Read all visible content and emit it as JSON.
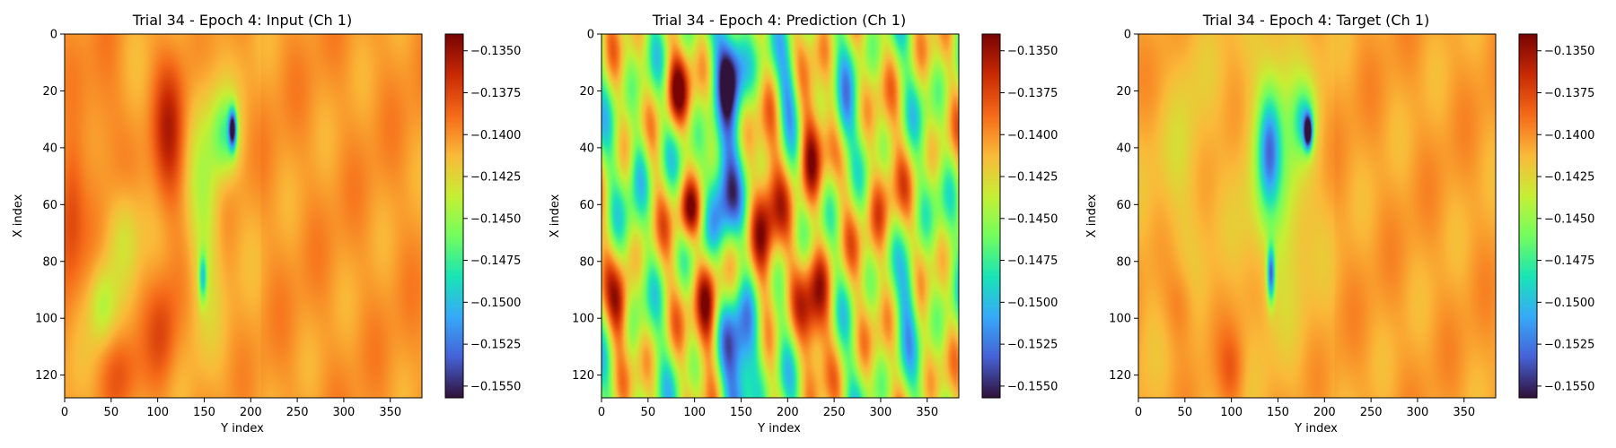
{
  "colors": {
    "cmap_stops": [
      "#30123b",
      "#4662d7",
      "#36aaf9",
      "#1ae4b6",
      "#72fe5e",
      "#c7ef34",
      "#faba39",
      "#f66b19",
      "#ca2a04",
      "#7a0403"
    ],
    "background": "#f4b43c",
    "axis": "#000000"
  },
  "chart_data": [
    {
      "type": "heatmap",
      "panel": "input",
      "title": "Trial 34 - Epoch 4: Input (Ch 1)",
      "xlabel": "Y index",
      "ylabel": "X index",
      "xlim": [
        0,
        384
      ],
      "ylim": [
        128,
        0
      ],
      "xticks": [
        0,
        50,
        100,
        150,
        200,
        250,
        300,
        350
      ],
      "yticks": [
        0,
        20,
        40,
        60,
        80,
        100,
        120
      ],
      "colorbar": {
        "range": [
          -0.1557,
          -0.134
        ],
        "ticks": [
          "−0.1350",
          "−0.1375",
          "−0.1400",
          "−0.1425",
          "−0.1450",
          "−0.1475",
          "−0.1500",
          "−0.1525",
          "−0.1550"
        ]
      },
      "background_value": -0.1405,
      "blobs": [
        {
          "x": 112,
          "y": 35,
          "sx": 12,
          "sy": 18,
          "v": -0.1362
        },
        {
          "x": 5,
          "y": 62,
          "sx": 10,
          "sy": 18,
          "v": -0.1372
        },
        {
          "x": 105,
          "y": 105,
          "sx": 12,
          "sy": 14,
          "v": -0.1378
        },
        {
          "x": 60,
          "y": 118,
          "sx": 14,
          "sy": 10,
          "v": -0.1385
        },
        {
          "x": 40,
          "y": 25,
          "sx": 15,
          "sy": 20,
          "v": -0.1392
        },
        {
          "x": 150,
          "y": 60,
          "sx": 12,
          "sy": 28,
          "v": -0.1442
        },
        {
          "x": 40,
          "y": 95,
          "sx": 10,
          "sy": 10,
          "v": -0.144
        },
        {
          "x": 180,
          "y": 33,
          "sx": 3,
          "sy": 5,
          "v": -0.1535
        },
        {
          "x": 172,
          "y": 35,
          "sx": 10,
          "sy": 10,
          "v": -0.1462
        },
        {
          "x": 148,
          "y": 85,
          "sx": 3,
          "sy": 6,
          "v": -0.1475
        },
        {
          "x": 65,
          "y": 70,
          "sx": 12,
          "sy": 12,
          "v": -0.143
        }
      ]
    },
    {
      "type": "heatmap",
      "panel": "prediction",
      "title": "Trial 34 - Epoch 4: Prediction (Ch 1)",
      "xlabel": "Y index",
      "ylabel": "X index",
      "xlim": [
        0,
        384
      ],
      "ylim": [
        128,
        0
      ],
      "xticks": [
        0,
        50,
        100,
        150,
        200,
        250,
        300,
        350
      ],
      "yticks": [
        0,
        20,
        40,
        60,
        80,
        100,
        120
      ],
      "colorbar": {
        "range": [
          -0.1557,
          -0.134
        ],
        "ticks": [
          "−0.1350",
          "−0.1375",
          "−0.1400",
          "−0.1425",
          "−0.1450",
          "−0.1475",
          "−0.1500",
          "−0.1525",
          "−0.1550"
        ]
      },
      "background_value": -0.144,
      "blobs": [
        {
          "x": 140,
          "y": 10,
          "sx": 12,
          "sy": 12,
          "v": -0.1557
        },
        {
          "x": 130,
          "y": 55,
          "sx": 12,
          "sy": 16,
          "v": -0.1557
        },
        {
          "x": 150,
          "y": 110,
          "sx": 14,
          "sy": 16,
          "v": -0.1557
        },
        {
          "x": 95,
          "y": 62,
          "sx": 10,
          "sy": 8,
          "v": -0.135
        },
        {
          "x": 115,
          "y": 95,
          "sx": 10,
          "sy": 14,
          "v": -0.1345
        },
        {
          "x": 175,
          "y": 70,
          "sx": 12,
          "sy": 20,
          "v": -0.1348
        },
        {
          "x": 225,
          "y": 40,
          "sx": 10,
          "sy": 14,
          "v": -0.1355
        },
        {
          "x": 80,
          "y": 20,
          "sx": 10,
          "sy": 10,
          "v": -0.1365
        },
        {
          "x": 230,
          "y": 95,
          "sx": 12,
          "sy": 16,
          "v": -0.136
        },
        {
          "x": 20,
          "y": 95,
          "sx": 8,
          "sy": 10,
          "v": -0.1375
        },
        {
          "x": 300,
          "y": 60,
          "sx": 12,
          "sy": 18,
          "v": -0.139
        },
        {
          "x": 260,
          "y": 30,
          "sx": 8,
          "sy": 10,
          "v": -0.1495
        },
        {
          "x": 330,
          "y": 90,
          "sx": 8,
          "sy": 12,
          "v": -0.1495
        },
        {
          "x": 200,
          "y": 20,
          "sx": 8,
          "sy": 10,
          "v": -0.149
        },
        {
          "x": 40,
          "y": 45,
          "sx": 8,
          "sy": 10,
          "v": -0.1485
        }
      ]
    },
    {
      "type": "heatmap",
      "panel": "target",
      "title": "Trial 34 - Epoch 4: Target (Ch 1)",
      "xlabel": "Y index",
      "ylabel": "X index",
      "xlim": [
        0,
        384
      ],
      "ylim": [
        128,
        0
      ],
      "xticks": [
        0,
        50,
        100,
        150,
        200,
        250,
        300,
        350
      ],
      "yticks": [
        0,
        20,
        40,
        60,
        80,
        100,
        120
      ],
      "colorbar": {
        "range": [
          -0.1557,
          -0.134
        ],
        "ticks": [
          "−0.1350",
          "−0.1375",
          "−0.1400",
          "−0.1425",
          "−0.1450",
          "−0.1475",
          "−0.1500",
          "−0.1525",
          "−0.1550"
        ]
      },
      "background_value": -0.1408,
      "blobs": [
        {
          "x": 150,
          "y": 45,
          "sx": 22,
          "sy": 30,
          "v": -0.1455
        },
        {
          "x": 140,
          "y": 40,
          "sx": 8,
          "sy": 14,
          "v": -0.1482
        },
        {
          "x": 182,
          "y": 34,
          "sx": 3,
          "sy": 4,
          "v": -0.155
        },
        {
          "x": 178,
          "y": 30,
          "sx": 8,
          "sy": 8,
          "v": -0.147
        },
        {
          "x": 142,
          "y": 84,
          "sx": 3,
          "sy": 7,
          "v": -0.152
        },
        {
          "x": 45,
          "y": 40,
          "sx": 20,
          "sy": 30,
          "v": -0.1425
        },
        {
          "x": 100,
          "y": 118,
          "sx": 10,
          "sy": 10,
          "v": -0.1385
        },
        {
          "x": 45,
          "y": 95,
          "sx": 12,
          "sy": 10,
          "v": -0.139
        },
        {
          "x": 30,
          "y": 20,
          "sx": 14,
          "sy": 16,
          "v": -0.1398
        }
      ]
    }
  ]
}
